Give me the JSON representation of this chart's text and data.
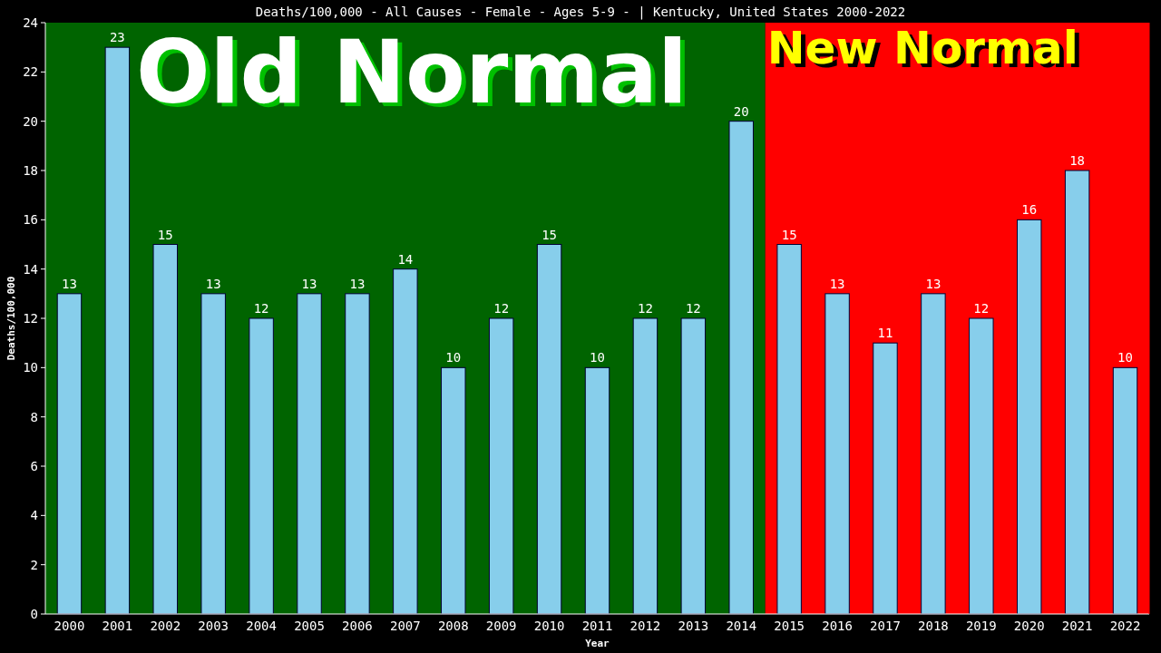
{
  "chart_data": {
    "type": "bar",
    "title": "Deaths/100,000 - All Causes - Female - Ages 5-9 -  | Kentucky, United States 2000-2022",
    "xlabel": "Year",
    "ylabel": "Deaths/100,000",
    "categories": [
      "2000",
      "2001",
      "2002",
      "2003",
      "2004",
      "2005",
      "2006",
      "2007",
      "2008",
      "2009",
      "2010",
      "2011",
      "2012",
      "2013",
      "2014",
      "2015",
      "2016",
      "2017",
      "2018",
      "2019",
      "2020",
      "2021",
      "2022"
    ],
    "values": [
      13,
      23,
      15,
      13,
      12,
      13,
      13,
      14,
      10,
      12,
      15,
      10,
      12,
      12,
      20,
      15,
      13,
      11,
      13,
      12,
      16,
      18,
      10
    ],
    "color": "#87ceeb",
    "ylim": [
      0,
      24
    ],
    "yticks": [
      0,
      2,
      4,
      6,
      8,
      10,
      12,
      14,
      16,
      18,
      20,
      22,
      24
    ],
    "data_labels": true,
    "grid": false,
    "bands": [
      {
        "axis": "x",
        "from": "2000",
        "to": "2014",
        "label": "Old Normal",
        "color": "#006400"
      },
      {
        "axis": "x",
        "from": "2015",
        "to": "2022",
        "label": "New Normal",
        "color": "#ff0000"
      }
    ]
  }
}
